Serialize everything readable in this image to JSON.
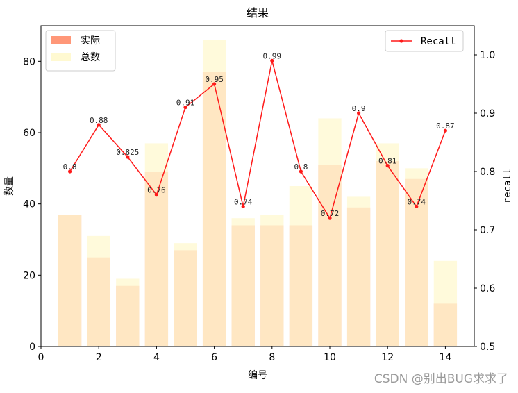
{
  "chart_data": {
    "type": "bar",
    "title": "结果",
    "xlabel": "编号",
    "ylabel": "数量",
    "y2label": "recall",
    "xlim": [
      0,
      15
    ],
    "ylim": [
      0,
      90
    ],
    "y2lim": [
      0.5,
      1.05
    ],
    "x_ticks": [
      0,
      2,
      4,
      6,
      8,
      10,
      12,
      14
    ],
    "y_ticks": [
      0,
      20,
      40,
      60,
      80
    ],
    "y2_ticks": [
      0.5,
      0.6,
      0.7,
      0.8,
      0.9,
      1.0
    ],
    "y2_tick_labels": [
      "0.5",
      "0.6",
      "0.7",
      "0.8",
      "0.9",
      "1.0"
    ],
    "x": [
      1,
      2,
      3,
      4,
      5,
      6,
      7,
      8,
      9,
      10,
      11,
      12,
      13,
      14
    ],
    "series": [
      {
        "name": "实际",
        "kind": "bar",
        "color": "#ff8c69",
        "values": [
          37,
          25,
          17,
          49,
          27,
          77,
          34,
          34,
          34,
          51,
          39,
          52,
          47,
          12
        ]
      },
      {
        "name": "总数",
        "kind": "bar",
        "color": "#fff8cc",
        "values": [
          37,
          31,
          19,
          57,
          29,
          86,
          36,
          37,
          45,
          64,
          42,
          57,
          50,
          24
        ]
      },
      {
        "name": "Recall",
        "kind": "line",
        "axis": "right",
        "color": "#ff1a1a",
        "values": [
          0.8,
          0.88,
          0.825,
          0.76,
          0.91,
          0.95,
          0.74,
          0.99,
          0.8,
          0.72,
          0.9,
          0.81,
          0.74,
          0.87
        ],
        "labels": [
          "0.8",
          "0.88",
          "0.825",
          "0.76",
          "0.91",
          "0.95",
          "0.74",
          "0.99",
          "0.8",
          "0.72",
          "0.9",
          "0.81",
          "0.74",
          "0.87"
        ]
      }
    ],
    "legend_left_placement": "top-left",
    "legend_right_placement": "top-right",
    "grid": false
  },
  "watermark": "CSDN @别出BUG求求了"
}
